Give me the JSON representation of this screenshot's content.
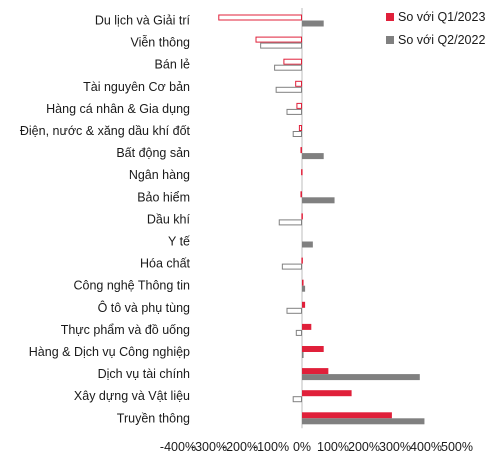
{
  "chart_data": {
    "type": "bar",
    "orientation": "horizontal",
    "categories": [
      "Du lịch và Giải trí",
      "Viễn thông",
      "Bán lẻ",
      "Tài nguyên Cơ bản",
      "Hàng cá nhân & Gia dụng",
      "Điện, nước & xăng dầu khí đốt",
      "Bất động sản",
      "Ngân hàng",
      "Bảo hiểm",
      "Dầu khí",
      "Y tế",
      "Hóa chất",
      "Công nghệ Thông tin",
      "Ô tô và phụ tùng",
      "Thực phẩm và đồ uống",
      "Hàng & Dịch vụ Công nghiệp",
      "Dịch vụ tài chính",
      "Xây dựng và Vật liệu",
      "Truyền thông"
    ],
    "series": [
      {
        "name": "So với Q1/2023",
        "color": "#e0203a",
        "values": [
          -270,
          -150,
          -60,
          -22,
          -18,
          -10,
          -5,
          -3,
          -5,
          -2,
          0,
          -2,
          5,
          10,
          30,
          70,
          85,
          160,
          290
        ]
      },
      {
        "name": "So với Q2/2022",
        "color": "#808080",
        "values": [
          70,
          -135,
          -90,
          -85,
          -50,
          -30,
          70,
          0,
          105,
          -75,
          35,
          -65,
          10,
          -50,
          -20,
          5,
          380,
          -30,
          395
        ]
      }
    ],
    "xticks": [
      "-400%",
      "-300%",
      "-200%",
      "-100%",
      "0%",
      "100%",
      "200%",
      "300%",
      "400%",
      "500%"
    ],
    "xlim": [
      -400,
      500
    ],
    "legend_position": "top-right",
    "grid": false,
    "negative_style": "outline"
  }
}
